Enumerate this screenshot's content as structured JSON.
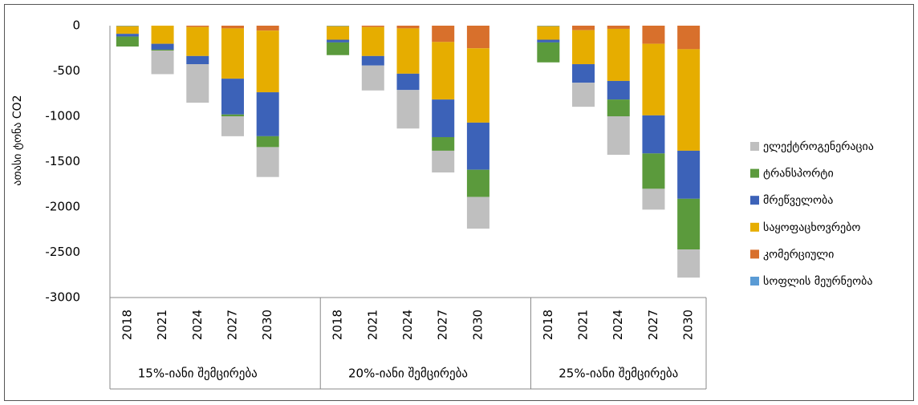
{
  "chart_data": {
    "type": "bar",
    "stacked": true,
    "y_label": "ათასი ტონა CO2",
    "categories": [
      "2018",
      "2021",
      "2024",
      "2027",
      "2030",
      null,
      "2018",
      "2021",
      "2024",
      "2027",
      "2030",
      null,
      "2018",
      "2021",
      "2024",
      "2027",
      "2030"
    ],
    "group_labels": [
      "15%-იანი შემცირება",
      "20%-იანი შემცირება",
      "25%-იანი შემცირება"
    ],
    "ylim": [
      -3000,
      0
    ],
    "yticks": [
      0,
      -500,
      -1000,
      -1500,
      -2000,
      -2500,
      -3000
    ],
    "grid": false,
    "legend": "right",
    "series": [
      {
        "name": "ელექტროგენერაცია",
        "color": "#bfbfbf",
        "values": [
          0,
          -260,
          -425,
          -220,
          -330,
          null,
          0,
          -275,
          -425,
          -240,
          -350,
          null,
          0,
          -265,
          -425,
          -230,
          -310
        ]
      },
      {
        "name": "ტრანსპორტი",
        "color": "#5b9a3c",
        "values": [
          -110,
          -10,
          0,
          -20,
          -120,
          null,
          -140,
          0,
          0,
          -150,
          -300,
          null,
          -220,
          0,
          -185,
          -390,
          -560
        ]
      },
      {
        "name": "მრეწველობა",
        "color": "#3c62b8",
        "values": [
          -30,
          -65,
          -90,
          -395,
          -485,
          null,
          -30,
          -105,
          -180,
          -415,
          -520,
          null,
          -30,
          -205,
          -205,
          -420,
          -530
        ]
      },
      {
        "name": "საყოფაცხოვრებო",
        "color": "#e6ad00",
        "values": [
          -85,
          -200,
          -320,
          -555,
          -680,
          null,
          -150,
          -320,
          -500,
          -635,
          -820,
          null,
          -150,
          -375,
          -575,
          -790,
          -1120
        ]
      },
      {
        "name": "კომერციული",
        "color": "#d8702c",
        "values": [
          0,
          0,
          -15,
          -30,
          -55,
          null,
          0,
          -15,
          -30,
          -180,
          -250,
          null,
          0,
          -50,
          -35,
          -200,
          -260
        ]
      },
      {
        "name": "სოფლის მეურნეობა",
        "color": "#5a9bd5",
        "values": [
          -5,
          0,
          0,
          0,
          0,
          null,
          -5,
          0,
          0,
          0,
          0,
          null,
          -5,
          0,
          0,
          0,
          0
        ]
      }
    ]
  }
}
